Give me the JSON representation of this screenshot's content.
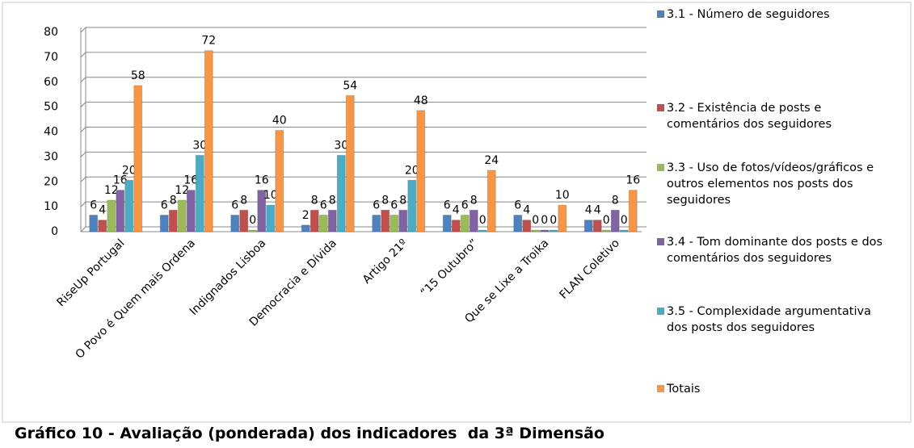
{
  "chart_data": {
    "type": "bar",
    "title": "Gráfico 10 - Avaliação (ponderada) dos indicadores  da 3ª Dimensão",
    "categories": [
      "RiseUp Portugal",
      "O Povo é Quem mais Ordena",
      "Indignados Lisboa",
      "Democracia e Dívida",
      "Artigo 21º",
      "“15 Outubro”",
      "Que se Lixe a Troika",
      "FLAN Coletivo"
    ],
    "series": [
      {
        "name": "3.1 - Número de seguidores",
        "color": "#4f81bd",
        "values": [
          6,
          6,
          6,
          2,
          6,
          6,
          6,
          4
        ]
      },
      {
        "name": "3.2 - Existência de posts e comentários dos seguidores",
        "color": "#c0504d",
        "values": [
          4,
          8,
          8,
          8,
          8,
          4,
          4,
          4
        ]
      },
      {
        "name": "3.3 - Uso de fotos/vídeos/gráficos e outros elementos nos posts dos seguidores",
        "color": "#9bbb59",
        "values": [
          12,
          12,
          0,
          6,
          6,
          6,
          0,
          0
        ]
      },
      {
        "name": "3.4 - Tom dominante dos posts e dos comentários dos seguidores",
        "color": "#8064a2",
        "values": [
          16,
          16,
          16,
          8,
          8,
          8,
          0,
          8
        ]
      },
      {
        "name": "3.5 - Complexidade argumentativa dos posts dos seguidores",
        "color": "#4bacc6",
        "values": [
          20,
          30,
          10,
          30,
          20,
          0,
          0,
          0
        ]
      },
      {
        "name": "Totais",
        "color": "#f79646",
        "values": [
          58,
          72,
          40,
          54,
          48,
          24,
          10,
          16
        ]
      }
    ],
    "ylim": [
      0,
      80
    ],
    "yticks": [
      0,
      10,
      20,
      30,
      40,
      50,
      60,
      70,
      80
    ],
    "grid": true,
    "legend": "right"
  }
}
